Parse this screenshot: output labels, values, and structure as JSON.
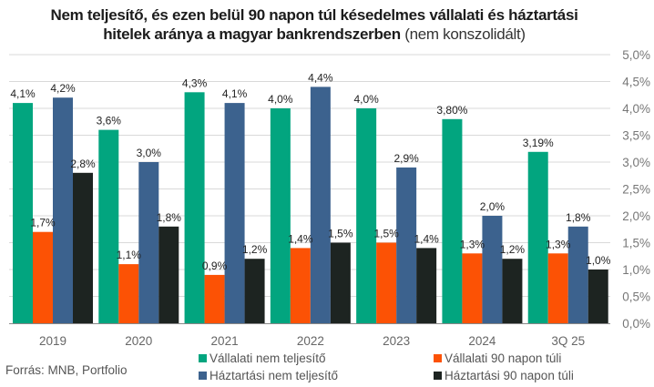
{
  "chart_data": {
    "type": "bar",
    "title": "Nem teljesítő, és ezen belül 90 napon túl késedelmes vállalati és háztartási hitelek aránya a magyar bankrendszerben",
    "title_line1": "Nem teljesítő, és ezen belül 90 napon túl késedelmes vállalati és háztartási",
    "title_line2_bold": "hitelek aránya a magyar bankrendszerben",
    "title_line2_normal": " (nem konszolidált)",
    "xlabel": "",
    "ylabel": "",
    "ylim": [
      0,
      5.0
    ],
    "y_axis_side": "right",
    "yticks": [
      0,
      0.5,
      1.0,
      1.5,
      2.0,
      2.5,
      3.0,
      3.5,
      4.0,
      4.5,
      5.0
    ],
    "ytick_labels": [
      "0,0%",
      "0,5%",
      "1,0%",
      "1,5%",
      "2,0%",
      "2,5%",
      "3,0%",
      "3,5%",
      "4,0%",
      "4,5%",
      "5,0%"
    ],
    "grid": true,
    "categories": [
      "2019",
      "2020",
      "2021",
      "2022",
      "2023",
      "2024",
      "3Q 25"
    ],
    "series": [
      {
        "name": "Vállalati nem teljesítő",
        "color": "#02a57f",
        "values": [
          4.1,
          3.6,
          4.3,
          4.0,
          4.0,
          3.8,
          3.19
        ],
        "labels": [
          "4,1%",
          "3,6%",
          "4,3%",
          "4,0%",
          "4,0%",
          "3,80%",
          "3,19%"
        ]
      },
      {
        "name": "Vállalati 90 napon túli",
        "color": "#fc5205",
        "values": [
          1.7,
          1.1,
          0.9,
          1.4,
          1.5,
          1.3,
          1.3
        ],
        "labels": [
          "1,7%",
          "1,1%",
          "0,9%",
          "1,4%",
          "1,5%",
          "1,3%",
          "1,3%"
        ]
      },
      {
        "name": "Háztartási nem teljesítő",
        "color": "#3c628e",
        "values": [
          4.2,
          3.0,
          4.1,
          4.4,
          2.9,
          2.0,
          1.8
        ],
        "labels": [
          "4,2%",
          "3,0%",
          "4,1%",
          "4,4%",
          "2,9%",
          "2,0%",
          "1,8%"
        ]
      },
      {
        "name": "Háztartási 90 napon túli",
        "color": "#1d2421",
        "values": [
          2.8,
          1.8,
          1.2,
          1.5,
          1.4,
          1.2,
          1.0
        ],
        "labels": [
          "2,8%",
          "1,8%",
          "1,2%",
          "1,5%",
          "1,4%",
          "1,2%",
          "1,0%"
        ]
      }
    ],
    "legend_position": "bottom",
    "source": "Forrás: MNB, Portfolio"
  }
}
